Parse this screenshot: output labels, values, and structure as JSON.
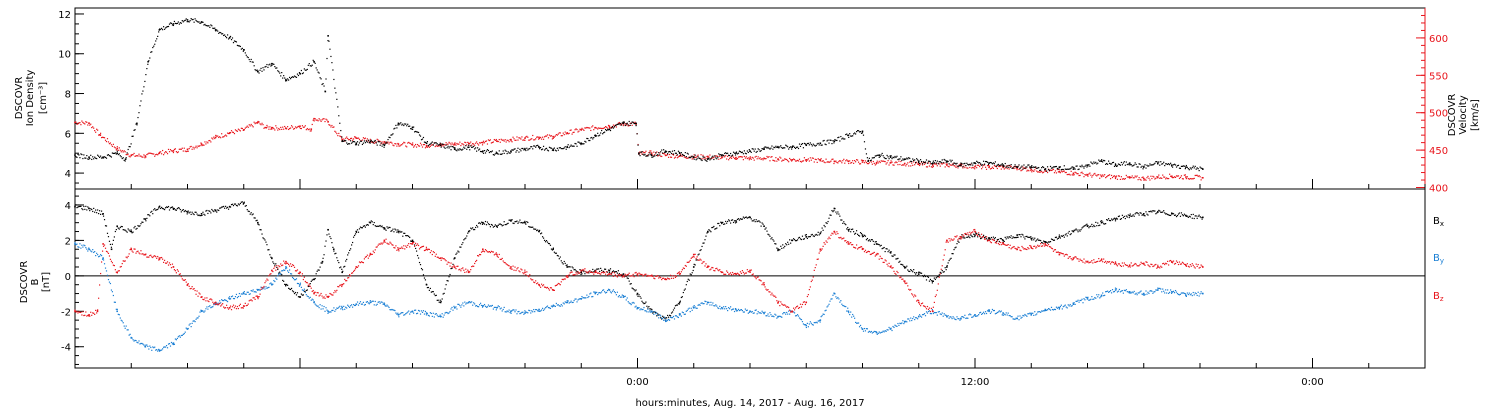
{
  "colors": {
    "black": "#000000",
    "red": "#e8141b",
    "blue": "#1a7fd4"
  },
  "chart_data": [
    {
      "type": "scatter",
      "panel": "top",
      "ylabel_left": [
        "DSCOVR",
        "Ion Density",
        "[cm⁻³]"
      ],
      "ylabel_right": [
        "DSCOVR",
        "Velocity",
        "[km/s]"
      ],
      "left_ylim": [
        3.2,
        12.3
      ],
      "left_ticks": [
        "4",
        "6",
        "8",
        "10",
        "12"
      ],
      "right_ylim": [
        398,
        640
      ],
      "right_ticks": [
        "400",
        "450",
        "500",
        "550",
        "600"
      ],
      "x_range_hours": [
        -20,
        28
      ],
      "series": [
        {
          "color": "red",
          "axis": "right",
          "x": [
            -20,
            -19.5,
            -19.1,
            -18.5,
            -18,
            -17.5,
            -17,
            -16.5,
            -16,
            -15.5,
            -15,
            -14.5,
            -14,
            -13.5,
            -13.2,
            -13,
            -12.5,
            -12,
            -11.6,
            -11.5,
            -11,
            -10.5,
            -10,
            -9.5,
            -9,
            -8.5,
            -8,
            -7.5,
            -7,
            -6.5,
            -6,
            -5.5,
            -5,
            -4.5,
            -4,
            -3.5,
            -3,
            -2.5,
            -2,
            -1.5,
            -1,
            -0.5,
            -0.05,
            0.05,
            0.5,
            1,
            1.5,
            2,
            2.5,
            3,
            3.5,
            4,
            4.5,
            5,
            5.5,
            6,
            6.5,
            7,
            7.5,
            8,
            8.5,
            9,
            9.5,
            10,
            10.5,
            11,
            11.5,
            12,
            12.5,
            13,
            13.5,
            14,
            14.5,
            15,
            15.5,
            16,
            16.5,
            17,
            17.5,
            18,
            18.5,
            19,
            19.5,
            20.1
          ],
          "y": [
            487,
            486,
            470,
            452,
            443,
            442,
            446,
            449,
            451,
            458,
            467,
            473,
            477,
            487,
            480,
            480,
            479,
            482,
            478,
            492,
            488,
            464,
            466,
            462,
            461,
            458,
            457,
            456,
            458,
            458,
            459,
            460,
            462,
            464,
            466,
            467,
            468,
            473,
            477,
            480,
            482,
            485,
            485,
            445,
            446,
            443,
            442,
            441,
            441,
            440,
            440,
            439,
            439,
            438,
            437,
            437,
            436,
            435,
            435,
            434,
            433,
            433,
            432,
            431,
            430,
            430,
            429,
            428,
            427,
            427,
            426,
            424,
            422,
            421,
            419,
            417,
            415,
            414,
            413,
            412,
            414,
            415,
            414,
            413
          ]
        },
        {
          "color": "black",
          "axis": "left",
          "x": [
            -20,
            -19.5,
            -19,
            -18.5,
            -18.2,
            -17.8,
            -17.4,
            -17,
            -16.5,
            -16,
            -15.5,
            -15,
            -14.5,
            -14,
            -13.5,
            -13,
            -12.5,
            -12,
            -11.5,
            -11.1,
            -11,
            -10.5,
            -10,
            -9.5,
            -9,
            -8.5,
            -8,
            -7.5,
            -7,
            -6.5,
            -6,
            -5.5,
            -5,
            -4.5,
            -4,
            -3.5,
            -3,
            -2.5,
            -2,
            -1.5,
            -1,
            -0.5,
            -0.05,
            0.05,
            0.5,
            1,
            1.5,
            2,
            2.5,
            3,
            3.5,
            4,
            4.5,
            5,
            5.5,
            6,
            6.5,
            7,
            7.5,
            8,
            8.2,
            8.6,
            9,
            9.5,
            10,
            10.5,
            11,
            11.5,
            12,
            12.5,
            13,
            13.5,
            14,
            14.5,
            15,
            15.5,
            16,
            16.5,
            17,
            17.5,
            18,
            18.5,
            19,
            19.5,
            20.1
          ],
          "y": [
            4.9,
            4.8,
            4.8,
            5.0,
            4.7,
            6.5,
            9.6,
            11.2,
            11.5,
            11.7,
            11.6,
            11.2,
            10.8,
            10.2,
            9.1,
            9.5,
            8.7,
            9.0,
            9.6,
            8.1,
            10.9,
            5.6,
            5.5,
            5.6,
            5.4,
            6.5,
            6.3,
            5.5,
            5.4,
            5.2,
            5.3,
            5.1,
            5.0,
            5.1,
            5.2,
            5.3,
            5.2,
            5.3,
            5.5,
            5.9,
            6.2,
            6.5,
            6.5,
            5.0,
            4.9,
            5.1,
            5.0,
            4.8,
            4.7,
            4.9,
            5.0,
            5.1,
            5.2,
            5.3,
            5.3,
            5.4,
            5.5,
            5.6,
            5.9,
            6.1,
            4.6,
            4.9,
            4.8,
            4.7,
            4.6,
            4.5,
            4.6,
            4.4,
            4.5,
            4.5,
            4.4,
            4.3,
            4.3,
            4.2,
            4.3,
            4.2,
            4.4,
            4.6,
            4.4,
            4.5,
            4.3,
            4.5,
            4.4,
            4.3,
            4.2
          ]
        }
      ]
    },
    {
      "type": "scatter",
      "panel": "bottom",
      "ylabel_left": [
        "DSCOVR",
        "B",
        "[nT]"
      ],
      "ylim": [
        -5.2,
        4.9
      ],
      "ticks": [
        "-4",
        "-2",
        "0",
        "2",
        "4"
      ],
      "zero_line": true,
      "x_range_hours": [
        -20,
        28
      ],
      "x_tick_labels": [
        {
          "h": 0,
          "label": "0:00"
        },
        {
          "h": 12,
          "label": "12:00"
        },
        {
          "h": 24,
          "label": "0:00"
        }
      ],
      "xlabel": "hours:minutes, Aug. 14, 2017 - Aug. 16, 2017",
      "legend": [
        {
          "label": "B",
          "sub": "x",
          "color": "black"
        },
        {
          "label": "B",
          "sub": "y",
          "color": "blue"
        },
        {
          "label": "B",
          "sub": "z",
          "color": "red"
        }
      ],
      "series": [
        {
          "name": "Bx",
          "color": "black",
          "x": [
            -20,
            -19.5,
            -19,
            -18.7,
            -18.5,
            -18,
            -17.5,
            -17,
            -16.5,
            -16,
            -15.5,
            -15,
            -14.5,
            -14,
            -13.5,
            -13,
            -12.5,
            -12,
            -11.5,
            -11.2,
            -11,
            -10.8,
            -10.5,
            -10,
            -9.5,
            -9,
            -8.5,
            -8,
            -7.5,
            -7,
            -6.5,
            -6,
            -5.5,
            -5,
            -4.5,
            -4,
            -3.5,
            -3,
            -2.5,
            -2,
            -1.5,
            -1,
            -0.5,
            0,
            0.5,
            1,
            1.5,
            2,
            2.5,
            3,
            3.5,
            4,
            4.5,
            5,
            5.5,
            6,
            6.5,
            7,
            7.5,
            8,
            8.5,
            9,
            9.5,
            10,
            10.5,
            11,
            11.5,
            12,
            12.5,
            13,
            13.5,
            14,
            14.5,
            15,
            15.5,
            16,
            16.5,
            17,
            17.5,
            18,
            18.5,
            19,
            19.5,
            20.1
          ],
          "y": [
            3.9,
            3.8,
            3.5,
            1.5,
            2.8,
            2.5,
            3.2,
            3.9,
            3.8,
            3.6,
            3.5,
            3.7,
            3.9,
            4.1,
            3.0,
            1.0,
            -0.5,
            -1.2,
            -0.2,
            0.8,
            2.6,
            1.5,
            0.2,
            2.5,
            3.0,
            2.7,
            2.5,
            2.0,
            -0.5,
            -1.5,
            1.0,
            2.5,
            3.0,
            2.8,
            3.1,
            3.0,
            2.5,
            1.5,
            0.5,
            0.2,
            0.3,
            0.3,
            0.1,
            -1.0,
            -2.0,
            -2.5,
            -1.5,
            0.5,
            2.5,
            3.0,
            3.1,
            3.3,
            2.8,
            1.5,
            2.0,
            2.2,
            2.4,
            3.8,
            2.6,
            2.3,
            1.8,
            1.3,
            0.5,
            0.1,
            -0.3,
            0.5,
            2.2,
            2.3,
            2.1,
            2.0,
            2.3,
            2.1,
            1.9,
            2.2,
            2.5,
            2.8,
            3.0,
            3.2,
            3.4,
            3.5,
            3.6,
            3.5,
            3.4,
            3.3
          ]
        },
        {
          "name": "By",
          "color": "blue",
          "x": [
            -20,
            -19.5,
            -19,
            -18.5,
            -18,
            -17.5,
            -17,
            -16.5,
            -16,
            -15.5,
            -15,
            -14.5,
            -14,
            -13.5,
            -13,
            -12.5,
            -12,
            -11.5,
            -11,
            -10.5,
            -10,
            -9.5,
            -9,
            -8.5,
            -8,
            -7.5,
            -7,
            -6.5,
            -6,
            -5.5,
            -5,
            -4.5,
            -4,
            -3.5,
            -3,
            -2.5,
            -2,
            -1.5,
            -1,
            -0.5,
            0,
            0.5,
            1,
            1.5,
            2,
            2.5,
            3,
            3.5,
            4,
            4.5,
            5,
            5.5,
            6,
            6.5,
            7,
            7.5,
            8,
            8.5,
            9,
            9.5,
            10,
            10.5,
            11,
            11.5,
            12,
            12.5,
            13,
            13.5,
            14,
            14.5,
            15,
            15.5,
            16,
            16.5,
            17,
            17.5,
            18,
            18.5,
            19,
            19.5,
            20.1
          ],
          "y": [
            1.8,
            1.5,
            1.0,
            -2.0,
            -3.5,
            -4.0,
            -4.2,
            -3.8,
            -3.0,
            -2.0,
            -1.6,
            -1.3,
            -1.0,
            -0.8,
            -0.5,
            0.5,
            -0.5,
            -1.5,
            -2.0,
            -1.8,
            -1.6,
            -1.5,
            -1.6,
            -2.2,
            -2.0,
            -2.1,
            -2.3,
            -1.8,
            -1.5,
            -1.7,
            -1.8,
            -2.0,
            -2.1,
            -1.9,
            -1.7,
            -1.5,
            -1.3,
            -1.0,
            -0.8,
            -1.2,
            -1.8,
            -2.0,
            -2.5,
            -2.2,
            -1.8,
            -1.5,
            -1.8,
            -1.9,
            -2.0,
            -2.1,
            -2.3,
            -2.0,
            -2.8,
            -2.5,
            -1.0,
            -2.0,
            -3.0,
            -3.2,
            -3.0,
            -2.6,
            -2.3,
            -2.0,
            -2.3,
            -2.4,
            -2.2,
            -2.0,
            -2.1,
            -2.4,
            -2.2,
            -1.9,
            -1.8,
            -1.6,
            -1.3,
            -1.1,
            -0.8,
            -0.9,
            -1.0,
            -0.8,
            -0.9,
            -1.1,
            -1.0
          ]
        },
        {
          "name": "Bz",
          "color": "red",
          "x": [
            -20,
            -19.5,
            -19.2,
            -19,
            -18.5,
            -18,
            -17.5,
            -17,
            -16.5,
            -16,
            -15.5,
            -15,
            -14.5,
            -14,
            -13.5,
            -13,
            -12.5,
            -12,
            -11.5,
            -11,
            -10.5,
            -10,
            -9.5,
            -9,
            -8.5,
            -8,
            -7.5,
            -7,
            -6.5,
            -6,
            -5.5,
            -5,
            -4.5,
            -4,
            -3.5,
            -3,
            -2.5,
            -2,
            -1.5,
            -1,
            -0.5,
            0,
            0.5,
            1,
            1.5,
            2,
            2.5,
            3,
            3.5,
            4,
            4.5,
            5,
            5.5,
            6,
            6.5,
            7,
            7.5,
            8,
            8.5,
            9,
            9.5,
            10,
            10.5,
            11,
            11.5,
            12,
            12.5,
            13,
            13.5,
            14,
            14.5,
            15,
            15.5,
            16,
            16.5,
            17,
            17.5,
            18,
            18.5,
            19,
            19.5,
            20.1
          ],
          "y": [
            -2.0,
            -2.2,
            -2.0,
            1.8,
            0.2,
            1.5,
            1.2,
            1.0,
            0.5,
            -0.5,
            -1.2,
            -1.5,
            -1.8,
            -1.7,
            -1.2,
            0.3,
            0.8,
            0.2,
            -1.0,
            -1.2,
            -0.5,
            0.5,
            1.2,
            2.0,
            1.5,
            1.8,
            1.5,
            1.0,
            0.5,
            0.2,
            1.5,
            1.2,
            0.5,
            0.2,
            -0.5,
            -0.8,
            0.0,
            0.3,
            0.2,
            0.1,
            0.0,
            0.1,
            0.0,
            -0.2,
            0.1,
            1.2,
            0.5,
            0.2,
            0.1,
            0.3,
            -0.5,
            -1.5,
            -2.0,
            -1.5,
            1.5,
            2.5,
            1.8,
            1.5,
            1.2,
            0.5,
            -0.3,
            -1.5,
            -2.0,
            2.0,
            2.2,
            2.5,
            2.0,
            1.8,
            1.5,
            1.6,
            1.8,
            1.2,
            1.0,
            0.8,
            0.9,
            0.7,
            0.6,
            0.7,
            0.5,
            0.8,
            0.6,
            0.5
          ]
        }
      ]
    }
  ]
}
